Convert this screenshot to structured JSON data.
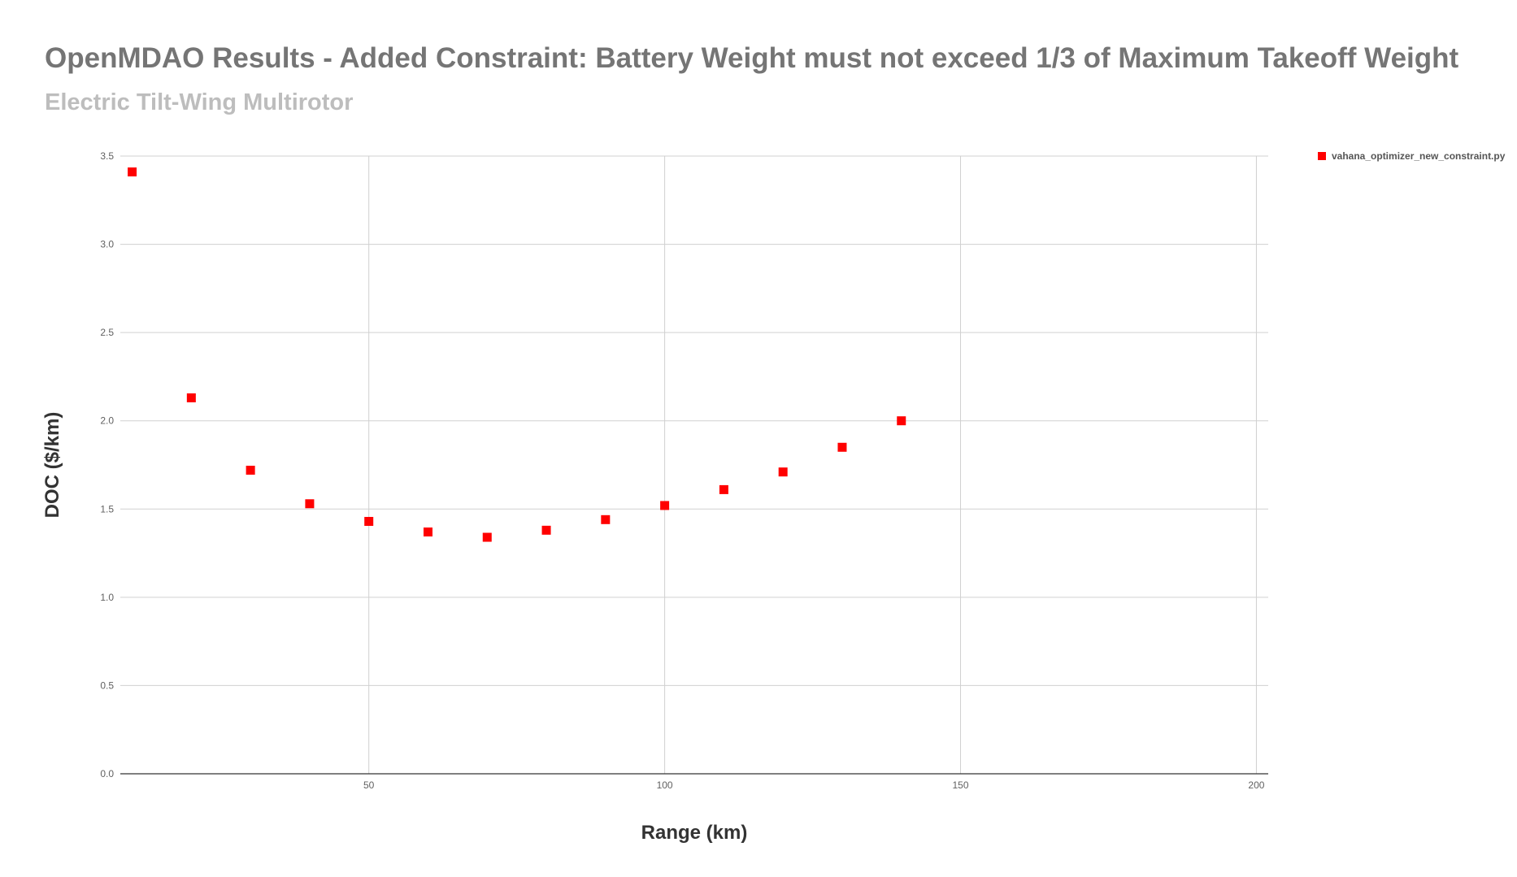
{
  "chart_data": {
    "type": "scatter",
    "title": "OpenMDAO Results - Added Constraint: Battery Weight must not exceed 1/3 of Maximum Takeoff Weight",
    "subtitle": "Electric Tilt-Wing Multirotor",
    "xlabel": "Range (km)",
    "ylabel": "DOC ($/km)",
    "xlim": [
      8,
      202
    ],
    "ylim": [
      0,
      3.5
    ],
    "xticks": [
      50,
      100,
      150,
      200
    ],
    "xtick_labels": [
      "50",
      "100",
      "150",
      "200"
    ],
    "yticks": [
      0,
      0.5,
      1.0,
      1.5,
      2.0,
      2.5,
      3.0,
      3.5
    ],
    "ytick_labels": [
      "0.0",
      "0.5",
      "1.0",
      "1.5",
      "2.0",
      "2.5",
      "3.0",
      "3.5"
    ],
    "grid": true,
    "legend_position": "top-right",
    "series": [
      {
        "name": "vahana_optimizer_new_constraint.py",
        "color": "#ff0000",
        "marker": "square",
        "x": [
          10,
          20,
          30,
          40,
          50,
          60,
          70,
          80,
          90,
          100,
          110,
          120,
          130,
          140
        ],
        "y": [
          3.41,
          2.13,
          1.72,
          1.53,
          1.43,
          1.37,
          1.34,
          1.38,
          1.44,
          1.52,
          1.61,
          1.71,
          1.85,
          2.0
        ]
      }
    ]
  }
}
